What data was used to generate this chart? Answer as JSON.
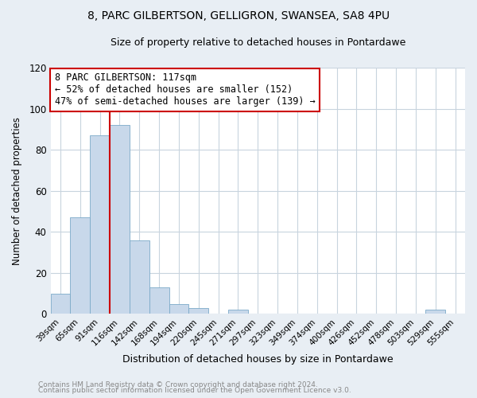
{
  "title": "8, PARC GILBERTSON, GELLIGRON, SWANSEA, SA8 4PU",
  "subtitle": "Size of property relative to detached houses in Pontardawe",
  "xlabel": "Distribution of detached houses by size in Pontardawe",
  "ylabel": "Number of detached properties",
  "bar_labels": [
    "39sqm",
    "65sqm",
    "91sqm",
    "116sqm",
    "142sqm",
    "168sqm",
    "194sqm",
    "220sqm",
    "245sqm",
    "271sqm",
    "297sqm",
    "323sqm",
    "349sqm",
    "374sqm",
    "400sqm",
    "426sqm",
    "452sqm",
    "478sqm",
    "503sqm",
    "529sqm",
    "555sqm"
  ],
  "bar_values": [
    10,
    47,
    87,
    92,
    36,
    13,
    5,
    3,
    0,
    2,
    0,
    0,
    0,
    0,
    0,
    0,
    0,
    0,
    0,
    2,
    0
  ],
  "bar_color": "#c8d8ea",
  "bar_edge_color": "#7baac8",
  "vline_index": 3,
  "vline_color": "#cc0000",
  "annotation_text": "8 PARC GILBERTSON: 117sqm\n← 52% of detached houses are smaller (152)\n47% of semi-detached houses are larger (139) →",
  "annotation_box_color": "white",
  "annotation_box_edge_color": "#cc0000",
  "ylim": [
    0,
    120
  ],
  "yticks": [
    0,
    20,
    40,
    60,
    80,
    100,
    120
  ],
  "footer1": "Contains HM Land Registry data © Crown copyright and database right 2024.",
  "footer2": "Contains public sector information licensed under the Open Government Licence v3.0.",
  "background_color": "#e8eef4",
  "plot_bg_color": "#ffffff",
  "grid_color": "#c8d4de"
}
